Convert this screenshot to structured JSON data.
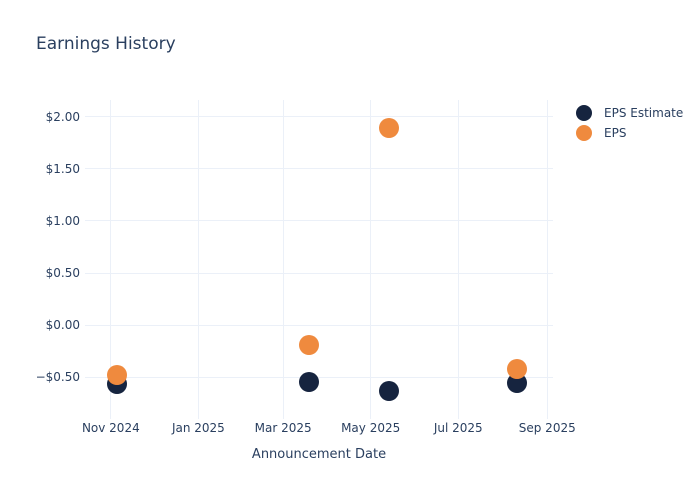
{
  "title": "Earnings History",
  "colors": {
    "text": "#2a3f5f",
    "grid": "#ebf0f8",
    "background": "#ffffff",
    "eps_estimate": "#16243f",
    "eps": "#ef8a3e"
  },
  "chart_data": {
    "type": "scatter",
    "title": "Earnings History",
    "xlabel": "Announcement Date",
    "ylabel": "",
    "grid": true,
    "legend_position": "top-right-outside",
    "marker_size": 20,
    "legend_marker_size": 16,
    "x_ticks": [
      {
        "label": "Nov 2024",
        "date": "2024-11-01"
      },
      {
        "label": "Jan 2025",
        "date": "2025-01-01"
      },
      {
        "label": "Mar 2025",
        "date": "2025-03-01"
      },
      {
        "label": "May 2025",
        "date": "2025-05-01"
      },
      {
        "label": "Jul 2025",
        "date": "2025-07-01"
      },
      {
        "label": "Sep 2025",
        "date": "2025-09-01"
      }
    ],
    "y_ticks": [
      {
        "label": "$2.00",
        "value": 2.0
      },
      {
        "label": "$1.50",
        "value": 1.5
      },
      {
        "label": "$1.00",
        "value": 1.0
      },
      {
        "label": "$0.50",
        "value": 0.5
      },
      {
        "label": "$0.00",
        "value": 0.0
      },
      {
        "label": "−$0.50",
        "value": -0.5
      }
    ],
    "x_range": [
      "2024-10-14",
      "2025-09-05"
    ],
    "y_range": [
      -0.865,
      2.163
    ],
    "series": [
      {
        "name": "EPS Estimate",
        "color": "#16243f",
        "points": [
          {
            "date": "2024-11-05",
            "value": -0.57
          },
          {
            "date": "2025-03-19",
            "value": -0.55
          },
          {
            "date": "2025-05-14",
            "value": -0.63
          },
          {
            "date": "2025-08-11",
            "value": -0.56
          }
        ]
      },
      {
        "name": "EPS",
        "color": "#ef8a3e",
        "points": [
          {
            "date": "2024-11-05",
            "value": -0.48
          },
          {
            "date": "2025-03-19",
            "value": -0.19
          },
          {
            "date": "2025-05-14",
            "value": 1.89
          },
          {
            "date": "2025-08-11",
            "value": -0.42
          }
        ]
      }
    ]
  }
}
